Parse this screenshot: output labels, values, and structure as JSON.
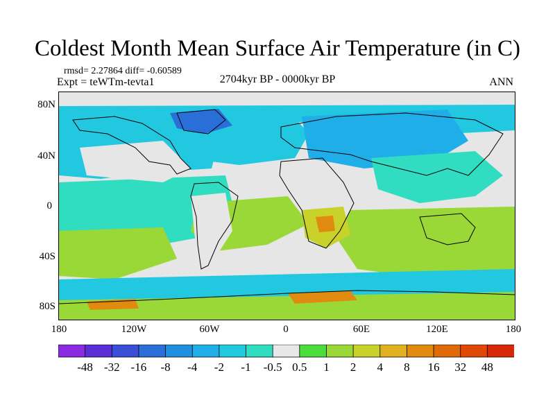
{
  "title": "Coldest Month Mean Surface Air Temperature (in C)",
  "stats_line": "rmsd= 2.27864 diff= -0.60589",
  "experiment": "Expt = teWTm-tevta1",
  "period": "2704kyr BP - 0000kyr BP",
  "season": "ANN",
  "axes": {
    "y_ticks": [
      "80N",
      "40N",
      "0",
      "40S",
      "80S"
    ],
    "x_ticks": [
      "180",
      "120W",
      "60W",
      "0",
      "60E",
      "120E",
      "180"
    ]
  },
  "colorbar": {
    "labels": [
      "-48",
      "-32",
      "-16",
      "-8",
      "-4",
      "-2",
      "-1",
      "-0.5",
      "0.5",
      "1",
      "2",
      "4",
      "8",
      "16",
      "32",
      "48"
    ],
    "colors": [
      "#8a2be2",
      "#5a2fd6",
      "#3a4fd8",
      "#2a6fd8",
      "#1f8fe0",
      "#20aee8",
      "#22c8e0",
      "#30ddc0",
      "#e8e8e8",
      "#4cdc3c",
      "#9ad838",
      "#c8d22a",
      "#e0b020",
      "#e08a10",
      "#e06a08",
      "#e04808",
      "#d82808"
    ]
  },
  "map_colors": {
    "neutral": "#e6e6e6",
    "cool_light": "#30ddc0",
    "cool_mid": "#22c8e0",
    "cool_dark": "#2a6fd8",
    "warm_light": "#9ad838",
    "warm_mid": "#c8d22a",
    "warm_dark": "#e08a10",
    "coast": "#000000"
  }
}
